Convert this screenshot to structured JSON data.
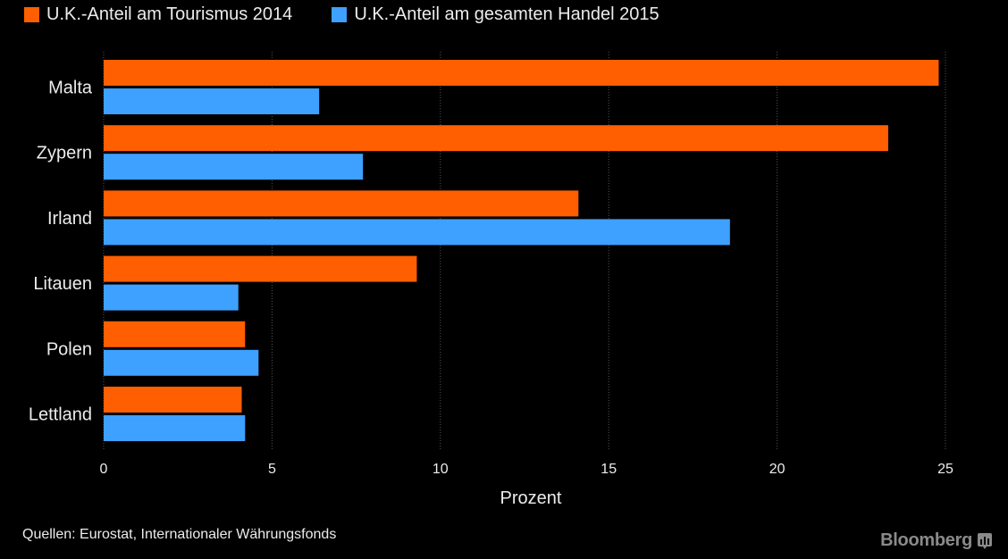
{
  "chart_data": {
    "type": "bar",
    "orientation": "horizontal",
    "categories": [
      "Malta",
      "Zypern",
      "Irland",
      "Litauen",
      "Polen",
      "Lettland"
    ],
    "series": [
      {
        "name": "U.K.-Anteil am Tourismus 2014",
        "color": "#ff5f00",
        "values": [
          24.8,
          23.3,
          14.1,
          9.3,
          4.2,
          4.1
        ]
      },
      {
        "name": "U.K.-Anteil am gesamten Handel 2015",
        "color": "#3ea0ff",
        "values": [
          6.4,
          7.7,
          18.6,
          4.0,
          4.6,
          4.2
        ]
      }
    ],
    "xlabel": "Prozent",
    "ylabel": "",
    "xlim": [
      0,
      25
    ],
    "xticks": [
      "0",
      "5",
      "10",
      "15",
      "20",
      "25"
    ],
    "grid": "vertical-dotted",
    "legend": "top-left"
  },
  "footer": {
    "source": "Quellen: Eurostat, Internationaler Währungsfonds",
    "brand": "Bloomberg"
  }
}
